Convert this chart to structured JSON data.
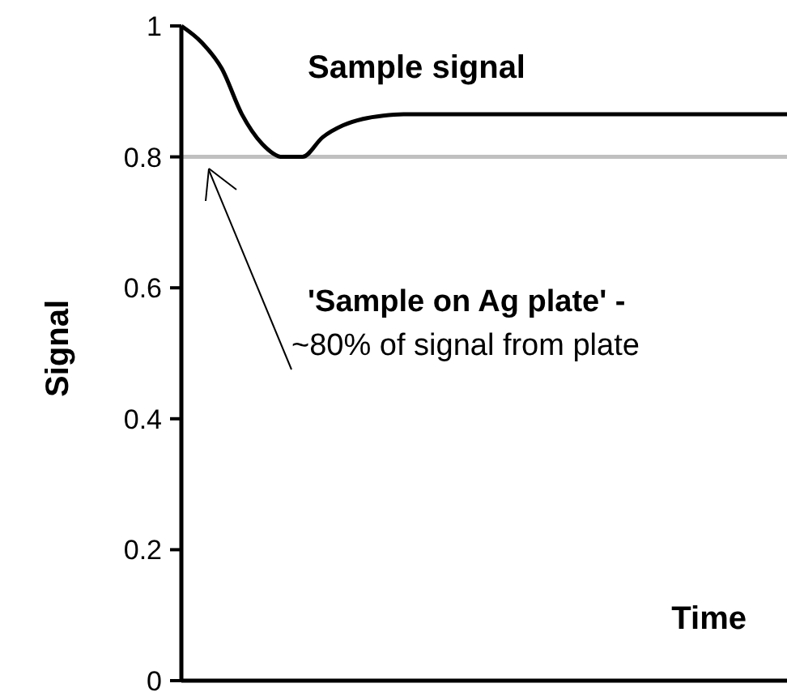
{
  "chart_data": {
    "type": "line",
    "xlabel": "Time",
    "ylabel": "Signal",
    "categories": [
      null,
      null,
      null,
      null,
      null,
      null,
      null,
      null,
      null,
      null,
      null,
      null,
      null,
      null,
      null,
      null,
      null,
      null,
      null,
      null,
      null,
      null,
      null,
      null,
      null,
      null,
      null,
      null,
      null,
      null,
      null
    ],
    "series": [
      {
        "name": "Sample signal",
        "color": "#000000",
        "values": [
          1.0,
          0.975,
          0.935,
          0.865,
          0.82,
          0.8,
          0.8,
          0.83,
          0.848,
          0.858,
          0.863,
          0.865,
          0.865,
          0.865,
          0.865,
          0.865,
          0.865,
          0.865,
          0.865,
          0.865,
          0.865,
          0.865,
          0.865,
          0.865,
          0.865,
          0.865,
          0.865,
          0.865,
          0.865,
          0.865,
          0.865
        ]
      }
    ],
    "ylim": [
      0,
      1
    ],
    "yticks": [
      0,
      0.2,
      0.4,
      0.6,
      0.8,
      1
    ],
    "tick_labels": "y",
    "grid": false,
    "marker": "none",
    "line_style": "solid",
    "ref_lines": [
      {
        "axis": "y",
        "value": 0.8,
        "color": "#c0c0c0",
        "label": "'Sample on Ag plate' -\n~80% of signal from plate"
      }
    ]
  }
}
